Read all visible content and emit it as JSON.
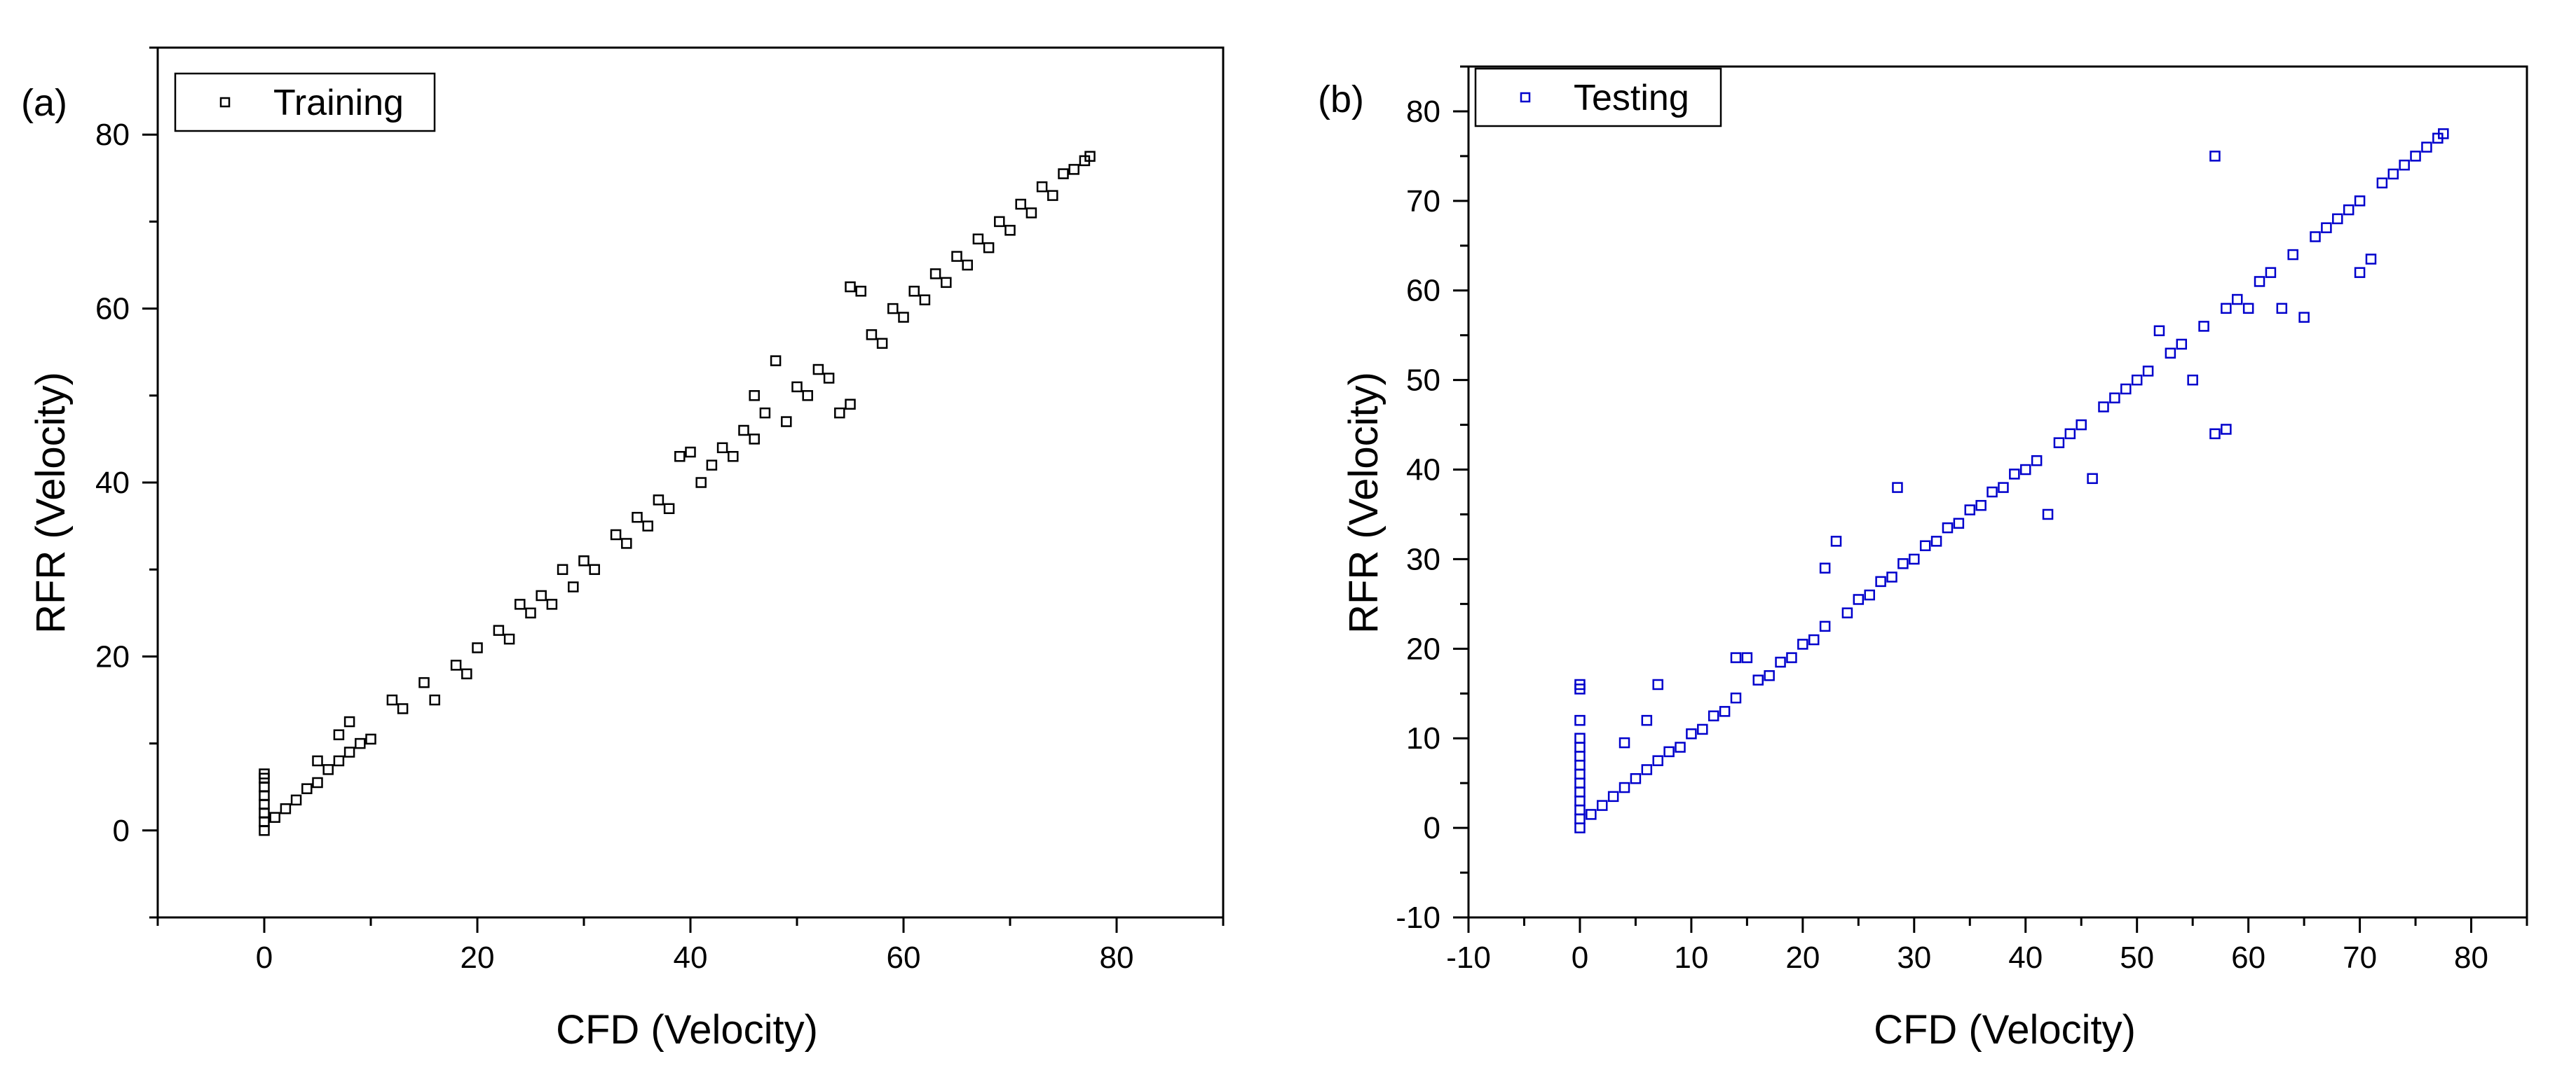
{
  "chart_data": [
    {
      "type": "scatter",
      "panel_label": "(a)",
      "xlabel": "CFD (Velocity)",
      "ylabel": "RFR (Velocity)",
      "xlim": [
        -10,
        90
      ],
      "ylim": [
        -10,
        90
      ],
      "xticks": [
        0,
        20,
        40,
        60,
        80
      ],
      "yticks": [
        0,
        20,
        40,
        60,
        80
      ],
      "xtick_labels": [
        "0",
        "20",
        "40",
        "60",
        "80"
      ],
      "ytick_labels": [
        "0",
        "20",
        "40",
        "60",
        "80"
      ],
      "grid": false,
      "legend": {
        "entries": [
          "Training"
        ],
        "placement": "top-left"
      },
      "series": [
        {
          "name": "Training",
          "marker": "open-square",
          "color": "#000000",
          "trend": "y ≈ x along 0–77.5 with a narrow cluster of points near x = 0 spanning y = 0 to ~7",
          "points": [
            [
              0,
              0
            ],
            [
              0,
              1
            ],
            [
              0,
              2
            ],
            [
              0,
              3
            ],
            [
              0,
              4
            ],
            [
              0,
              5
            ],
            [
              0,
              6
            ],
            [
              0,
              6.5
            ],
            [
              1,
              1.5
            ],
            [
              2,
              2.5
            ],
            [
              3,
              3.5
            ],
            [
              4,
              4.8
            ],
            [
              5,
              5.5
            ],
            [
              6,
              7
            ],
            [
              7,
              8
            ],
            [
              8,
              9
            ],
            [
              9,
              10
            ],
            [
              10,
              10.5
            ],
            [
              5,
              8
            ],
            [
              7,
              11
            ],
            [
              8,
              12.5
            ],
            [
              12,
              15
            ],
            [
              13,
              14
            ],
            [
              15,
              17
            ],
            [
              16,
              15
            ],
            [
              18,
              19
            ],
            [
              19,
              18
            ],
            [
              20,
              21
            ],
            [
              22,
              23
            ],
            [
              23,
              22
            ],
            [
              24,
              26
            ],
            [
              25,
              25
            ],
            [
              26,
              27
            ],
            [
              27,
              26
            ],
            [
              28,
              30
            ],
            [
              29,
              28
            ],
            [
              30,
              31
            ],
            [
              31,
              30
            ],
            [
              33,
              34
            ],
            [
              34,
              33
            ],
            [
              35,
              36
            ],
            [
              36,
              35
            ],
            [
              37,
              38
            ],
            [
              38,
              37
            ],
            [
              39,
              43
            ],
            [
              40,
              43.5
            ],
            [
              41,
              40
            ],
            [
              42,
              42
            ],
            [
              43,
              44
            ],
            [
              44,
              43
            ],
            [
              45,
              46
            ],
            [
              46,
              45
            ],
            [
              46,
              50
            ],
            [
              47,
              48
            ],
            [
              48,
              54
            ],
            [
              49,
              47
            ],
            [
              50,
              51
            ],
            [
              51,
              50
            ],
            [
              52,
              53
            ],
            [
              53,
              52
            ],
            [
              54,
              48
            ],
            [
              55,
              49
            ],
            [
              55,
              62.5
            ],
            [
              56,
              62
            ],
            [
              57,
              57
            ],
            [
              58,
              56
            ],
            [
              59,
              60
            ],
            [
              60,
              59
            ],
            [
              61,
              62
            ],
            [
              62,
              61
            ],
            [
              63,
              64
            ],
            [
              64,
              63
            ],
            [
              65,
              66
            ],
            [
              66,
              65
            ],
            [
              67,
              68
            ],
            [
              68,
              67
            ],
            [
              69,
              70
            ],
            [
              70,
              69
            ],
            [
              71,
              72
            ],
            [
              72,
              71
            ],
            [
              73,
              74
            ],
            [
              74,
              73
            ],
            [
              75,
              75.5
            ],
            [
              76,
              76
            ],
            [
              77,
              77
            ],
            [
              77.5,
              77.5
            ]
          ]
        }
      ]
    },
    {
      "type": "scatter",
      "panel_label": "(b)",
      "xlabel": "CFD (Velocity)",
      "ylabel": "RFR (Velocity)",
      "xlim": [
        -10,
        85
      ],
      "ylim": [
        -10,
        85
      ],
      "xticks": [
        -10,
        0,
        10,
        20,
        30,
        40,
        50,
        60,
        70,
        80
      ],
      "yticks": [
        -10,
        0,
        10,
        20,
        30,
        40,
        50,
        60,
        70,
        80
      ],
      "xtick_labels": [
        "-10",
        "0",
        "10",
        "20",
        "30",
        "40",
        "50",
        "60",
        "70",
        "80"
      ],
      "ytick_labels": [
        "-10",
        "0",
        "10",
        "20",
        "30",
        "40",
        "50",
        "60",
        "70",
        "80"
      ],
      "grid": false,
      "legend": {
        "entries": [
          "Testing"
        ],
        "placement": "top-left"
      },
      "series": [
        {
          "name": "Testing",
          "marker": "open-square",
          "color": "#0000cc",
          "trend": "y ≈ x along 0–77.5 with a vertical cluster near x = 0 spanning y = 0 to ~16",
          "points": [
            [
              0,
              0
            ],
            [
              0,
              1
            ],
            [
              0,
              2
            ],
            [
              0,
              3
            ],
            [
              0,
              4
            ],
            [
              0,
              5
            ],
            [
              0,
              6
            ],
            [
              0,
              7
            ],
            [
              0,
              8
            ],
            [
              0,
              9
            ],
            [
              0,
              10
            ],
            [
              0,
              12
            ],
            [
              0,
              15.5
            ],
            [
              0,
              16
            ],
            [
              1,
              1.5
            ],
            [
              2,
              2.5
            ],
            [
              3,
              3.5
            ],
            [
              4,
              4.5
            ],
            [
              4,
              9.5
            ],
            [
              5,
              5.5
            ],
            [
              6,
              12
            ],
            [
              6,
              6.5
            ],
            [
              7,
              16
            ],
            [
              7,
              7.5
            ],
            [
              8,
              8.5
            ],
            [
              9,
              9
            ],
            [
              10,
              10.5
            ],
            [
              11,
              11
            ],
            [
              12,
              12.5
            ],
            [
              13,
              13
            ],
            [
              14,
              19
            ],
            [
              14,
              14.5
            ],
            [
              15,
              19
            ],
            [
              16,
              16.5
            ],
            [
              17,
              17
            ],
            [
              18,
              18.5
            ],
            [
              19,
              19
            ],
            [
              20,
              20.5
            ],
            [
              21,
              21
            ],
            [
              22,
              29
            ],
            [
              22,
              22.5
            ],
            [
              23,
              32
            ],
            [
              24,
              24
            ],
            [
              25,
              25.5
            ],
            [
              26,
              26
            ],
            [
              27,
              27.5
            ],
            [
              28,
              28
            ],
            [
              28.5,
              38
            ],
            [
              29,
              29.5
            ],
            [
              30,
              30
            ],
            [
              31,
              31.5
            ],
            [
              32,
              32
            ],
            [
              33,
              33.5
            ],
            [
              34,
              34
            ],
            [
              35,
              35.5
            ],
            [
              36,
              36
            ],
            [
              37,
              37.5
            ],
            [
              38,
              38
            ],
            [
              39,
              39.5
            ],
            [
              40,
              40
            ],
            [
              41,
              41
            ],
            [
              42,
              35
            ],
            [
              43,
              43
            ],
            [
              44,
              44
            ],
            [
              45,
              45
            ],
            [
              46,
              39
            ],
            [
              47,
              47
            ],
            [
              48,
              48
            ],
            [
              49,
              49
            ],
            [
              50,
              50
            ],
            [
              51,
              51
            ],
            [
              52,
              55.5
            ],
            [
              53,
              53
            ],
            [
              54,
              54
            ],
            [
              55,
              50
            ],
            [
              56,
              56
            ],
            [
              57,
              75
            ],
            [
              57,
              44
            ],
            [
              58,
              44.5
            ],
            [
              58,
              58
            ],
            [
              59,
              59
            ],
            [
              60,
              58
            ],
            [
              61,
              61
            ],
            [
              62,
              62
            ],
            [
              63,
              58
            ],
            [
              64,
              64
            ],
            [
              65,
              57
            ],
            [
              66,
              66
            ],
            [
              67,
              67
            ],
            [
              68,
              68
            ],
            [
              69,
              69
            ],
            [
              70,
              62
            ],
            [
              70,
              70
            ],
            [
              71,
              63.5
            ],
            [
              72,
              72
            ],
            [
              73,
              73
            ],
            [
              74,
              74
            ],
            [
              75,
              75
            ],
            [
              76,
              76
            ],
            [
              77,
              77
            ],
            [
              77.5,
              77.5
            ]
          ]
        }
      ]
    }
  ]
}
